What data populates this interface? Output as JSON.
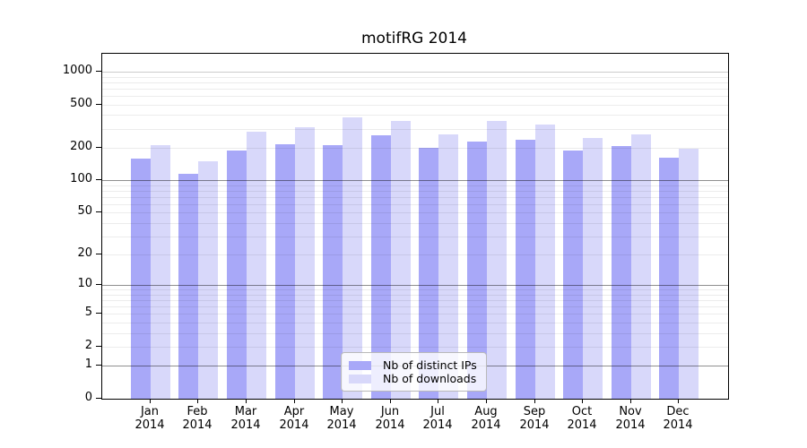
{
  "page": {
    "background": "#ffffff"
  },
  "chart_data": {
    "type": "bar",
    "title": "motifRG 2014",
    "xlabel": "",
    "ylabel": "",
    "scale": "log1p",
    "categories": [
      "Jan",
      "Feb",
      "Mar",
      "Apr",
      "May",
      "Jun",
      "Jul",
      "Aug",
      "Sep",
      "Oct",
      "Nov",
      "Dec"
    ],
    "x_sublabel": "2014",
    "series": [
      {
        "name": "Nb of distinct IPs",
        "color": "#a8a8f8",
        "values": [
          159,
          116,
          190,
          215,
          211,
          261,
          199,
          229,
          237,
          189,
          206,
          162
        ]
      },
      {
        "name": "Nb of downloads",
        "color": "#d8d8fa",
        "values": [
          210,
          149,
          283,
          311,
          379,
          351,
          266,
          351,
          325,
          248,
          266,
          195
        ]
      }
    ],
    "y_ticks": [
      0,
      1,
      2,
      5,
      10,
      20,
      50,
      100,
      200,
      500,
      1000
    ],
    "ylim": [
      0,
      1465
    ],
    "grid": {
      "minor_values": [
        2,
        3,
        4,
        5,
        6,
        7,
        8,
        9,
        20,
        30,
        40,
        50,
        60,
        70,
        80,
        90,
        200,
        300,
        400,
        500,
        600,
        700,
        800,
        900
      ],
      "strong_values": [
        1,
        10,
        100
      ],
      "soft_values": [
        1000
      ],
      "minor_color": "rgba(0,0,0,0.075)",
      "strong_color": "rgba(0,0,0,0.44)",
      "soft_color": "rgba(0,0,0,0.20)"
    },
    "legend_position": "bottom-center",
    "axis_color": "#000000"
  }
}
